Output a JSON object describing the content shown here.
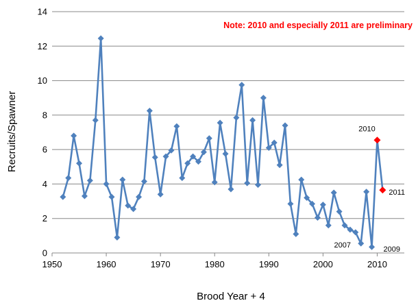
{
  "chart_data": {
    "type": "line",
    "title": "",
    "xlabel": "Brood Year + 4",
    "ylabel": "Recruits/Spawner",
    "xlim": [
      1950,
      2015
    ],
    "ylim": [
      0,
      14
    ],
    "xticks": [
      1950,
      1960,
      1970,
      1980,
      1990,
      2000,
      2010
    ],
    "yticks": [
      0,
      2,
      4,
      6,
      8,
      10,
      12,
      14
    ],
    "grid": "horizontal",
    "annotation": "Note: 2010 and especially 2011 are preliminary",
    "colors": {
      "series": "#4f81bd",
      "preliminary": "#ff0000",
      "note": "#ff0000"
    },
    "series": [
      {
        "x": [
          1952,
          1953,
          1954,
          1955,
          1956,
          1957,
          1958,
          1959,
          1960,
          1961,
          1962,
          1963,
          1964,
          1965,
          1966,
          1967,
          1968,
          1969,
          1970,
          1971,
          1972,
          1973,
          1974,
          1975,
          1976,
          1977,
          1978,
          1979,
          1980,
          1981,
          1982,
          1983,
          1984,
          1985,
          1986,
          1987,
          1988,
          1989,
          1990,
          1991,
          1992,
          1993,
          1994,
          1995,
          1996,
          1997,
          1998,
          1999,
          2000,
          2001,
          2002,
          2003,
          2004,
          2005,
          2006,
          2007,
          2008,
          2009,
          2010,
          2011
        ],
        "values": [
          3.25,
          4.35,
          6.8,
          5.2,
          3.3,
          4.2,
          7.7,
          12.45,
          4.0,
          3.25,
          0.9,
          4.25,
          2.75,
          2.55,
          3.25,
          4.15,
          8.25,
          5.55,
          3.4,
          5.6,
          5.95,
          7.35,
          4.35,
          5.2,
          5.6,
          5.3,
          5.85,
          6.65,
          4.1,
          7.55,
          5.75,
          3.7,
          7.85,
          9.75,
          4.05,
          7.7,
          3.95,
          9.0,
          6.1,
          6.4,
          5.1,
          7.4,
          2.85,
          1.1,
          4.25,
          3.2,
          2.85,
          2.05,
          2.8,
          1.6,
          3.5,
          2.4,
          1.6,
          1.35,
          1.2,
          0.55,
          3.55,
          0.35,
          6.55,
          3.65
        ]
      }
    ],
    "preliminary_years": [
      2010,
      2011
    ],
    "point_labels": [
      {
        "year": 2007,
        "text": "2007"
      },
      {
        "year": 2009,
        "text": "2009"
      },
      {
        "year": 2010,
        "text": "2010"
      },
      {
        "year": 2011,
        "text": "2011"
      }
    ]
  }
}
